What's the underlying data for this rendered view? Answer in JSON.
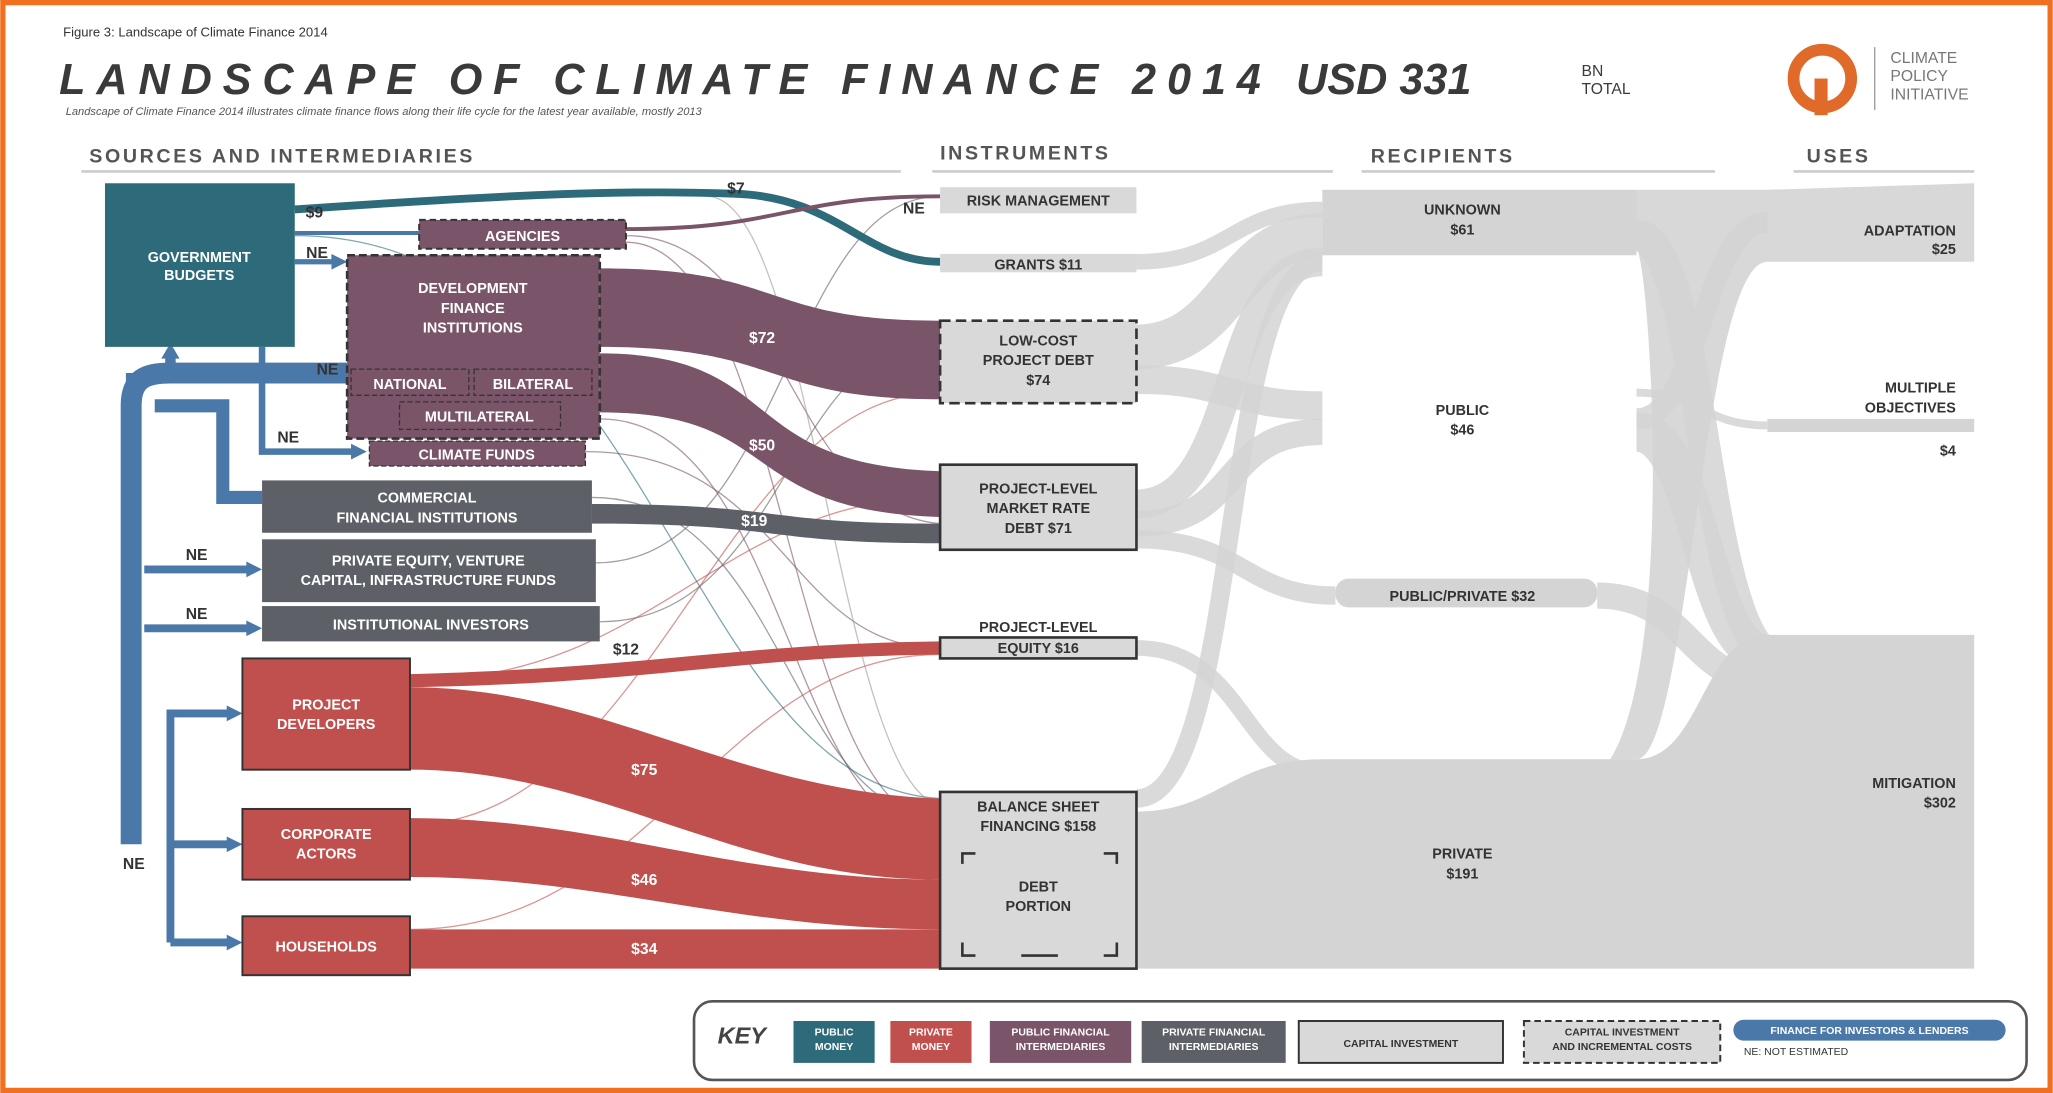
{
  "figure_label": "Figure 3: Landscape of Climate Finance 2014",
  "title": "LANDSCAPE OF CLIMATE FINANCE 2014",
  "total": "USD 331",
  "total_unit": [
    "BN",
    "TOTAL"
  ],
  "subtitle": "Landscape of Climate Finance 2014 illustrates climate finance flows along their life cycle for the latest year available, mostly 2013",
  "logo": [
    "CLIMATE",
    "POLICY",
    "INITIATIVE"
  ],
  "columns": [
    "SOURCES AND INTERMEDIARIES",
    "INSTRUMENTS",
    "RECIPIENTS",
    "USES"
  ],
  "sources": [
    [
      "GOVERNMENT",
      "BUDGETS"
    ],
    [
      "AGENCIES"
    ],
    [
      "DEVELOPMENT",
      "FINANCE",
      "INSTITUTIONS"
    ],
    [
      "NATIONAL"
    ],
    [
      "BILATERAL"
    ],
    [
      "MULTILATERAL"
    ],
    [
      "CLIMATE FUNDS"
    ],
    [
      "COMMERCIAL",
      "FINANCIAL INSTITUTIONS"
    ],
    [
      "PRIVATE EQUITY, VENTURE",
      "CAPITAL, INFRASTRUCTURE FUNDS"
    ],
    [
      "INSTITUTIONAL INVESTORS"
    ],
    [
      "PROJECT",
      "DEVELOPERS"
    ],
    [
      "CORPORATE",
      "ACTORS"
    ],
    [
      "HOUSEHOLDS"
    ]
  ],
  "instruments": [
    [
      "RISK MANAGEMENT"
    ],
    [
      "GRANTS $11"
    ],
    [
      "LOW-COST",
      "PROJECT DEBT",
      "$74"
    ],
    [
      "PROJECT-LEVEL",
      "MARKET RATE",
      "DEBT $71"
    ],
    [
      "PROJECT-LEVEL",
      "EQUITY $16"
    ],
    [
      "BALANCE SHEET",
      "FINANCING $158"
    ],
    [
      "DEBT",
      "PORTION"
    ]
  ],
  "recipients": [
    [
      "UNKNOWN",
      "$61"
    ],
    [
      "PUBLIC",
      "$46"
    ],
    [
      "PUBLIC/PRIVATE $32"
    ],
    [
      "PRIVATE",
      "$191"
    ]
  ],
  "uses": [
    [
      "ADAPTATION",
      "$25"
    ],
    [
      "MULTIPLE",
      "OBJECTIVES"
    ],
    [
      "$4"
    ],
    [
      "MITIGATION",
      "$302"
    ]
  ],
  "flow_labels": [
    "$9",
    "$7",
    "NE",
    "NE",
    "NE",
    "NE",
    "$72",
    "$50",
    "$19",
    "NE",
    "NE",
    "$12",
    "$75",
    "$46",
    "$34",
    "NE"
  ],
  "key": {
    "title": "KEY",
    "items": [
      [
        "PUBLIC",
        "MONEY"
      ],
      [
        "PRIVATE",
        "MONEY"
      ],
      [
        "PUBLIC FINANCIAL",
        "INTERMEDIARIES"
      ],
      [
        "PRIVATE FINANCIAL",
        "INTERMEDIARIES"
      ],
      [
        "CAPITAL INVESTMENT"
      ],
      [
        "CAPITAL INVESTMENT",
        "AND INCREMENTAL COSTS"
      ],
      [
        "FINANCE FOR INVESTORS & LENDERS"
      ]
    ],
    "note": "NE: NOT ESTIMATED"
  }
}
